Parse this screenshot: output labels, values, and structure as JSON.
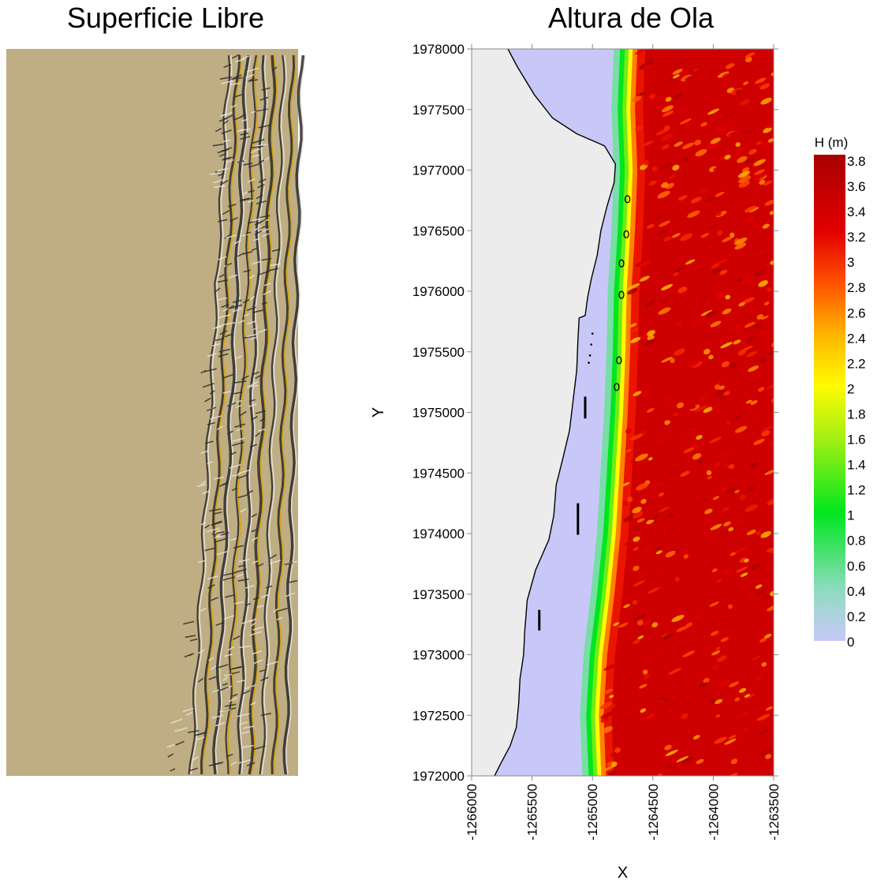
{
  "left_panel": {
    "title": "Superficie Libre"
  },
  "right_panel": {
    "title": "Altura de Ola"
  },
  "chart_data": [
    {
      "type": "heatmap",
      "title": "Superficie Libre",
      "description_colors": {
        "background": "#bfae84",
        "crest_dark": "#2a2a2a",
        "crest_light": "#e8e4dc",
        "crest_gold": "#d9a300"
      },
      "axes": "none"
    },
    {
      "type": "heatmap",
      "title": "Altura de Ola",
      "xlabel": "X",
      "ylabel": "Y",
      "xlim": [
        -1266000,
        -1263500
      ],
      "ylim": [
        1972000,
        1978000
      ],
      "x_ticks": [
        -1266000,
        -1265500,
        -1265000,
        -1264500,
        -1264000,
        -1263500
      ],
      "x_tick_labels": [
        "-1266000",
        "-1265500",
        "-1265000",
        "-1264500",
        "-1264000",
        "-1263500"
      ],
      "y_ticks": [
        1972000,
        1972500,
        1973000,
        1973500,
        1974000,
        1974500,
        1975000,
        1975500,
        1976000,
        1976500,
        1977000,
        1977500,
        1978000
      ],
      "y_tick_labels": [
        "1972000",
        "1972500",
        "1973000",
        "1973500",
        "1974000",
        "1974500",
        "1975000",
        "1975500",
        "1976000",
        "1976500",
        "1977000",
        "1977500",
        "1978000"
      ],
      "land_color": "#ececec",
      "coastline": [
        [
          -1265700,
          1978000
        ],
        [
          -1265620,
          1977850
        ],
        [
          -1265480,
          1977620
        ],
        [
          -1265330,
          1977430
        ],
        [
          -1265130,
          1977300
        ],
        [
          -1264900,
          1977200
        ],
        [
          -1264810,
          1977050
        ],
        [
          -1264820,
          1976900
        ],
        [
          -1264880,
          1976700
        ],
        [
          -1264930,
          1976500
        ],
        [
          -1264960,
          1976300
        ],
        [
          -1265010,
          1976100
        ],
        [
          -1265040,
          1975950
        ],
        [
          -1265060,
          1975800
        ],
        [
          -1265110,
          1975780
        ],
        [
          -1265120,
          1975600
        ],
        [
          -1265130,
          1975350
        ],
        [
          -1265160,
          1975100
        ],
        [
          -1265190,
          1974850
        ],
        [
          -1265250,
          1974600
        ],
        [
          -1265300,
          1974400
        ],
        [
          -1265320,
          1974150
        ],
        [
          -1265360,
          1973950
        ],
        [
          -1265470,
          1973700
        ],
        [
          -1265540,
          1973450
        ],
        [
          -1265560,
          1973200
        ],
        [
          -1265570,
          1973000
        ],
        [
          -1265600,
          1972800
        ],
        [
          -1265610,
          1972600
        ],
        [
          -1265630,
          1972400
        ],
        [
          -1265680,
          1972250
        ],
        [
          -1265760,
          1972100
        ],
        [
          -1265810,
          1972000
        ]
      ],
      "breakwaters": [
        {
          "x": -1265060,
          "y0": 1974950,
          "y1": 1975130
        },
        {
          "x": -1265120,
          "y0": 1973990,
          "y1": 1974250
        },
        {
          "x": -1265440,
          "y0": 1973200,
          "y1": 1973370
        }
      ],
      "islands": [
        {
          "x": -1264710,
          "y": 1976760
        },
        {
          "x": -1264720,
          "y": 1976470
        },
        {
          "x": -1264760,
          "y": 1976230
        },
        {
          "x": -1264760,
          "y": 1975970
        },
        {
          "x": -1264780,
          "y": 1975430
        },
        {
          "x": -1264800,
          "y": 1975210
        }
      ],
      "break_line": [
        [
          -1264680,
          1978000
        ],
        [
          -1264700,
          1977500
        ],
        [
          -1264680,
          1977000
        ],
        [
          -1264700,
          1976500
        ],
        [
          -1264730,
          1976000
        ],
        [
          -1264740,
          1975500
        ],
        [
          -1264760,
          1975000
        ],
        [
          -1264790,
          1974500
        ],
        [
          -1264820,
          1974000
        ],
        [
          -1264870,
          1973500
        ],
        [
          -1264930,
          1973000
        ],
        [
          -1264960,
          1972500
        ],
        [
          -1264940,
          1972000
        ]
      ],
      "colorbar": {
        "label": "H (m)",
        "range": [
          0,
          3.8
        ],
        "tick_labels": [
          "3.8",
          "3.6",
          "3.4",
          "3.2",
          "3",
          "2.8",
          "2.6",
          "2.4",
          "2.2",
          "2",
          "1.8",
          "1.6",
          "1.4",
          "1.2",
          "1",
          "0.8",
          "0.6",
          "0.4",
          "0.2",
          "0"
        ],
        "stops": [
          {
            "v": 0,
            "c": "#c8c8f8"
          },
          {
            "v": 0.4,
            "c": "#8fdcc0"
          },
          {
            "v": 1.0,
            "c": "#00e61e"
          },
          {
            "v": 1.6,
            "c": "#a8ef14"
          },
          {
            "v": 2.0,
            "c": "#fffb00"
          },
          {
            "v": 2.4,
            "c": "#ffb400"
          },
          {
            "v": 2.8,
            "c": "#ff5000"
          },
          {
            "v": 3.2,
            "c": "#e30000"
          },
          {
            "v": 3.8,
            "c": "#a80000"
          }
        ]
      }
    }
  ]
}
